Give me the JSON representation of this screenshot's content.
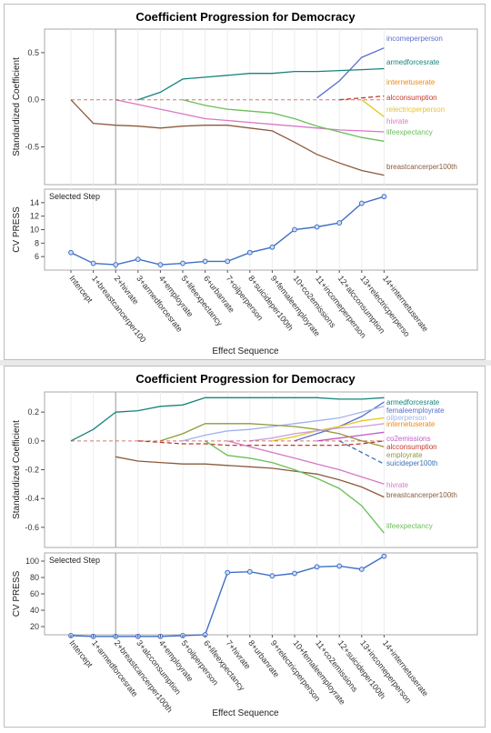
{
  "charts": [
    {
      "title": "Coefficient Progression for Democracy",
      "coef_ylabel": "Standardized Coefficient",
      "press_ylabel": "CV PRESS",
      "xlabel": "Effect Sequence",
      "selected_step_label": "Selected Step"
    },
    {
      "title": "Coefficient Progression for Democracy",
      "coef_ylabel": "Standardized Coefficient",
      "press_ylabel": "CV PRESS",
      "xlabel": "Effect Sequence",
      "selected_step_label": "Selected Step"
    }
  ],
  "chart_data": [
    {
      "type": "line",
      "title": "Coefficient Progression for Democracy",
      "xlabel": "Effect Sequence",
      "ylabel": "Standardized Coefficient",
      "selected_step": 2,
      "categories": [
        "Intercept",
        "1+breastcancerper100",
        "2+hivrate",
        "3+armedforcesrate",
        "4+employrate",
        "5+lifeexpectancy",
        "6+urbanrate",
        "7+oilperperson",
        "8+suicideper100th",
        "9+femaleemployrate",
        "10+co2emissions",
        "11+incomeperperson",
        "12+alcconsumption",
        "13+relectricperperso",
        "14+internetuserate"
      ],
      "coef_ylim": [
        -0.9,
        0.75
      ],
      "coef_yticks": [
        -0.5,
        0.0,
        0.5
      ],
      "series": [
        {
          "name": "incomeperperson",
          "color": "#5b6fc9",
          "dashed": false,
          "values": [
            null,
            null,
            null,
            null,
            null,
            null,
            null,
            null,
            null,
            null,
            null,
            0.02,
            0.2,
            0.45,
            0.55
          ]
        },
        {
          "name": "armedforcesrate",
          "color": "#16847c",
          "dashed": false,
          "values": [
            null,
            null,
            null,
            0.0,
            0.08,
            0.22,
            0.24,
            0.26,
            0.28,
            0.28,
            0.3,
            0.3,
            0.31,
            0.32,
            0.33
          ]
        },
        {
          "name": "internetuserate",
          "color": "#e88a1c",
          "dashed": false,
          "values": [
            null,
            null,
            null,
            null,
            null,
            null,
            null,
            null,
            null,
            null,
            null,
            null,
            null,
            null,
            0.03
          ]
        },
        {
          "name": "alcconsumption",
          "color": "#c0392b",
          "dashed": true,
          "values": [
            null,
            null,
            null,
            null,
            null,
            null,
            null,
            null,
            null,
            null,
            null,
            null,
            0.0,
            0.02,
            0.04
          ]
        },
        {
          "name": "relectricperperson",
          "color": "#e8c61c",
          "dashed": false,
          "values": [
            null,
            null,
            null,
            null,
            null,
            null,
            null,
            null,
            null,
            null,
            null,
            null,
            null,
            0.0,
            -0.18
          ]
        },
        {
          "name": "hivrate",
          "color": "#d977c4",
          "dashed": false,
          "values": [
            null,
            null,
            0.0,
            -0.05,
            -0.1,
            -0.15,
            -0.2,
            -0.22,
            -0.24,
            -0.26,
            -0.28,
            -0.3,
            -0.32,
            -0.33,
            -0.34
          ]
        },
        {
          "name": "lifeexpectancy",
          "color": "#6bbf59",
          "dashed": false,
          "values": [
            null,
            null,
            null,
            null,
            null,
            0.0,
            -0.06,
            -0.1,
            -0.12,
            -0.14,
            -0.2,
            -0.28,
            -0.34,
            -0.4,
            -0.44
          ]
        },
        {
          "name": "breastcancerper100th",
          "color": "#8c5a3c",
          "dashed": false,
          "values": [
            0.0,
            -0.25,
            -0.27,
            -0.28,
            -0.3,
            -0.28,
            -0.27,
            -0.27,
            -0.3,
            -0.33,
            -0.45,
            -0.58,
            -0.67,
            -0.75,
            -0.8
          ]
        }
      ],
      "cv_press": {
        "ylim": [
          4,
          16
        ],
        "yticks": [
          6,
          8,
          10,
          12,
          14
        ],
        "values": [
          6.6,
          5.0,
          4.8,
          5.6,
          4.8,
          5.0,
          5.3,
          5.3,
          6.6,
          7.4,
          10.0,
          10.4,
          11.0,
          13.9,
          14.9
        ]
      }
    },
    {
      "type": "line",
      "title": "Coefficient Progression for Democracy",
      "xlabel": "Effect Sequence",
      "ylabel": "Standardized Coefficient",
      "selected_step": 2,
      "categories": [
        "Intercept",
        "1+armedforcesrate",
        "2+breastcancerper100th",
        "3+alcconsumption",
        "4+employrate",
        "5+oilperperson",
        "6+lifeexpectancy",
        "7+hivrate",
        "8+urbanrate",
        "9+relectricperperson",
        "10+femaleemployrate",
        "11+co2emissions",
        "12+suicideper100th",
        "13+incomeperperson",
        "14+internetuserate"
      ],
      "coef_ylim": [
        -0.74,
        0.34
      ],
      "coef_yticks": [
        -0.6,
        -0.4,
        -0.2,
        0.0,
        0.2
      ],
      "series": [
        {
          "name": "armedforcesrate",
          "color": "#16847c",
          "dashed": false,
          "values": [
            0.0,
            0.08,
            0.2,
            0.21,
            0.24,
            0.25,
            0.3,
            0.3,
            0.3,
            0.3,
            0.3,
            0.3,
            0.29,
            0.29,
            0.3
          ]
        },
        {
          "name": "femaleemployrate",
          "color": "#5b6fc9",
          "dashed": false,
          "values": [
            null,
            null,
            null,
            null,
            null,
            null,
            null,
            null,
            null,
            null,
            0.0,
            0.05,
            0.1,
            0.17,
            0.27
          ]
        },
        {
          "name": "oilperperson",
          "color": "#9fb3f0",
          "dashed": false,
          "values": [
            null,
            null,
            null,
            null,
            null,
            0.0,
            0.04,
            0.07,
            0.08,
            0.1,
            0.12,
            0.14,
            0.16,
            0.2,
            0.24
          ]
        },
        {
          "name": "internetuserate",
          "color": "#e88a1c",
          "dashed": false,
          "values": [
            null,
            null,
            null,
            null,
            null,
            null,
            null,
            null,
            null,
            null,
            null,
            null,
            null,
            null,
            0.2
          ]
        },
        {
          "name": "co2emissions",
          "color": "#c05cc7",
          "dashed": false,
          "values": [
            null,
            null,
            null,
            null,
            null,
            null,
            null,
            null,
            null,
            null,
            null,
            0.0,
            0.02,
            0.04,
            0.06
          ]
        },
        {
          "name": "alcconsumption",
          "color": "#c0392b",
          "dashed": true,
          "values": [
            null,
            null,
            null,
            0.0,
            -0.01,
            -0.02,
            -0.02,
            -0.03,
            -0.03,
            -0.03,
            -0.03,
            -0.03,
            -0.03,
            -0.02,
            0.0
          ]
        },
        {
          "name": "employrate",
          "color": "#8f9a3a",
          "dashed": false,
          "values": [
            null,
            null,
            null,
            null,
            0.0,
            0.05,
            0.12,
            0.12,
            0.12,
            0.11,
            0.1,
            0.08,
            0.05,
            0.0,
            -0.04
          ]
        },
        {
          "name": "suicideper100th",
          "color": "#3e73b8",
          "dashed": true,
          "values": [
            null,
            null,
            null,
            null,
            null,
            null,
            null,
            null,
            null,
            null,
            null,
            null,
            0.0,
            -0.08,
            -0.16
          ]
        },
        {
          "name": "hivrate",
          "color": "#d977c4",
          "dashed": false,
          "values": [
            null,
            null,
            null,
            null,
            null,
            null,
            null,
            0.0,
            -0.04,
            -0.08,
            -0.12,
            -0.16,
            -0.2,
            -0.25,
            -0.3
          ]
        },
        {
          "name": "breastcancerper100th",
          "color": "#8c5a3c",
          "dashed": false,
          "values": [
            null,
            null,
            -0.11,
            -0.14,
            -0.15,
            -0.16,
            -0.16,
            -0.17,
            -0.18,
            -0.19,
            -0.21,
            -0.23,
            -0.27,
            -0.32,
            -0.39
          ]
        },
        {
          "name": "lifeexpectancy",
          "color": "#6bbf59",
          "dashed": false,
          "values": [
            null,
            null,
            null,
            null,
            null,
            null,
            0.0,
            -0.1,
            -0.12,
            -0.15,
            -0.2,
            -0.26,
            -0.33,
            -0.45,
            -0.64
          ]
        },
        {
          "name": "relectricperperson",
          "color": "#e8c61c",
          "dashed": false,
          "values": [
            null,
            null,
            null,
            null,
            null,
            null,
            null,
            null,
            null,
            0.0,
            0.03,
            0.07,
            0.1,
            0.14,
            0.16
          ]
        },
        {
          "name": "urbanrate",
          "color": "#c9a0dc",
          "dashed": false,
          "values": [
            null,
            null,
            null,
            null,
            null,
            null,
            null,
            null,
            0.0,
            0.02,
            0.05,
            0.07,
            0.09,
            0.1,
            0.12
          ]
        }
      ],
      "legend_order": [
        "armedforcesrate",
        "femaleemployrate",
        "oilperperson",
        "internetuserate",
        "co2emissions",
        "alcconsumption",
        "employrate",
        "suicideper100th",
        "hivrate",
        "breastcancerper100th",
        "lifeexpectancy"
      ],
      "cv_press": {
        "ylim": [
          10,
          110
        ],
        "yticks": [
          20,
          40,
          60,
          80,
          100
        ],
        "values": [
          9,
          8,
          8,
          8,
          8,
          9,
          10,
          86,
          87,
          82,
          85,
          93,
          94,
          90,
          106
        ]
      }
    }
  ]
}
